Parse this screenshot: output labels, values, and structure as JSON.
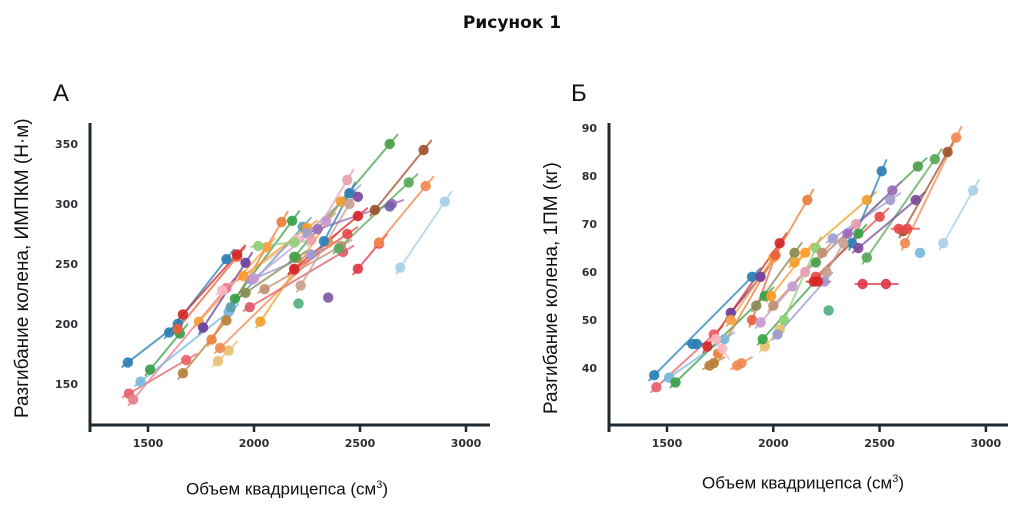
{
  "figure": {
    "title": "Рисунок 1"
  },
  "chart_data": [
    {
      "panel": "А",
      "type": "scatter",
      "subtype": "paired-lines",
      "title": "",
      "xlabel": "Объем квадрицепса (см",
      "xlabel_sup": "3",
      "xlabel_suffix": ")",
      "ylabel": "Разгибание колена, ИМПКМ (Н·м)",
      "xlim": [
        1170,
        3100
      ],
      "ylim": [
        125,
        365
      ],
      "xticks": [
        1500,
        2000,
        2500,
        3000
      ],
      "yticks": [
        150,
        200,
        250,
        300,
        350
      ],
      "grid": false,
      "legend": "none",
      "pairs": [
        {
          "color": "#2a7fb5",
          "x": [
            1405,
            1640
          ],
          "y": [
            168,
            200
          ]
        },
        {
          "color": "#e8606a",
          "x": [
            1410,
            1680
          ],
          "y": [
            142,
            170
          ]
        },
        {
          "color": "#e88090",
          "x": [
            1430,
            1870
          ],
          "y": [
            137,
            230
          ]
        },
        {
          "color": "#7ab8dc",
          "x": [
            1465,
            1880
          ],
          "y": [
            152,
            210
          ]
        },
        {
          "color": "#3aa04a",
          "x": [
            1510,
            1650
          ],
          "y": [
            162,
            192
          ]
        },
        {
          "color": "#2a7fb5",
          "x": [
            1600,
            1870
          ],
          "y": [
            193,
            254
          ]
        },
        {
          "color": "#e8603a",
          "x": [
            1640,
            1920
          ],
          "y": [
            196,
            256
          ]
        },
        {
          "color": "#d62728",
          "x": [
            1665,
            1920
          ],
          "y": [
            208,
            258
          ]
        },
        {
          "color": "#b8803a",
          "x": [
            1665,
            1870
          ],
          "y": [
            159,
            203
          ]
        },
        {
          "color": "#f4a040",
          "x": [
            1740,
            2060
          ],
          "y": [
            202,
            264
          ]
        },
        {
          "color": "#6a3d9a",
          "x": [
            1760,
            1960
          ],
          "y": [
            197,
            251
          ]
        },
        {
          "color": "#e8803a",
          "x": [
            1800,
            2130
          ],
          "y": [
            187,
            285
          ]
        },
        {
          "color": "#e8c070",
          "x": [
            1830,
            1880
          ],
          "y": [
            169,
            178
          ]
        },
        {
          "color": "#f08a50",
          "x": [
            1840,
            2350
          ],
          "y": [
            180,
            268
          ]
        },
        {
          "color": "#f7b8c0",
          "x": [
            1850,
            2200
          ],
          "y": [
            228,
            270
          ]
        },
        {
          "color": "#3aa04a",
          "x": [
            1910,
            2180
          ],
          "y": [
            221,
            286
          ]
        },
        {
          "color": "#5aa0b0",
          "x": [
            1890,
            2230
          ],
          "y": [
            214,
            281
          ]
        },
        {
          "color": "#ff9a28",
          "x": [
            1950,
            2250
          ],
          "y": [
            240,
            280
          ]
        },
        {
          "color": "#9a9ad0",
          "x": [
            1990,
            2270
          ],
          "y": [
            237,
            258
          ]
        },
        {
          "color": "#c59ad0",
          "x": [
            2000,
            2340
          ],
          "y": [
            238,
            286
          ]
        },
        {
          "color": "#8a8a50",
          "x": [
            1960,
            2200
          ],
          "y": [
            226,
            255
          ]
        },
        {
          "color": "#e05a6a",
          "x": [
            1980,
            2420
          ],
          "y": [
            214,
            260
          ]
        },
        {
          "color": "#8fcf7a",
          "x": [
            2020,
            2190
          ],
          "y": [
            265,
            268
          ]
        },
        {
          "color": "#c09070",
          "x": [
            2050,
            2410
          ],
          "y": [
            229,
            265
          ]
        },
        {
          "color": "#f0a030",
          "x": [
            2030,
            2410
          ],
          "y": [
            202,
            302
          ]
        },
        {
          "color": "#e84a4a",
          "x": [
            2190,
            2440
          ],
          "y": [
            245,
            275
          ]
        },
        {
          "color": "#d62728",
          "x": [
            2190,
            2490
          ],
          "y": [
            246,
            290
          ]
        },
        {
          "color": "#4aa04a",
          "x": [
            2190,
            2640
          ],
          "y": [
            256,
            350
          ]
        },
        {
          "color": "#c8a090",
          "x": [
            2220,
            2450
          ],
          "y": [
            232,
            300
          ]
        },
        {
          "color": "#9a6ab8",
          "x": [
            2300,
            2650
          ],
          "y": [
            279,
            300
          ]
        },
        {
          "color": "#a0a0d0",
          "x": [
            2250,
            2460
          ],
          "y": [
            276,
            309
          ]
        },
        {
          "color": "#e8a0b0",
          "x": [
            2270,
            2440
          ],
          "y": [
            270,
            320
          ]
        },
        {
          "color": "#50b080",
          "x": [
            2210,
            2210
          ],
          "y": [
            217,
            217
          ]
        },
        {
          "color": "#7a5aa8",
          "x": [
            2350,
            2350
          ],
          "y": [
            222,
            222
          ]
        },
        {
          "color": "#5aa85a",
          "x": [
            2400,
            2730
          ],
          "y": [
            263,
            318
          ]
        },
        {
          "color": "#2a7fb5",
          "x": [
            2330,
            2450
          ],
          "y": [
            269,
            309
          ]
        },
        {
          "color": "#7a4a9a",
          "x": [
            2490,
            2490
          ],
          "y": [
            306,
            306
          ]
        },
        {
          "color": "#e03a4a",
          "x": [
            2490,
            2590
          ],
          "y": [
            246,
            267
          ]
        },
        {
          "color": "#a0522d",
          "x": [
            2570,
            2800
          ],
          "y": [
            295,
            345
          ]
        },
        {
          "color": "#f08a50",
          "x": [
            2590,
            2810
          ],
          "y": [
            268,
            315
          ]
        },
        {
          "color": "#7a60b0",
          "x": [
            2640,
            2640
          ],
          "y": [
            298,
            298
          ]
        },
        {
          "color": "#a8d0e8",
          "x": [
            2690,
            2900
          ],
          "y": [
            247,
            302
          ]
        }
      ]
    },
    {
      "panel": "Б",
      "type": "scatter",
      "subtype": "paired-lines",
      "title": "",
      "xlabel": "Объем квадрицепса (см",
      "xlabel_sup": "3",
      "xlabel_suffix": ")",
      "ylabel": "Разгибание колена, 1ПМ (кг)",
      "xlim": [
        1170,
        3100
      ],
      "ylim": [
        31,
        91
      ],
      "xticks": [
        1500,
        2000,
        2500,
        3000
      ],
      "yticks": [
        40,
        50,
        60,
        70,
        80,
        90
      ],
      "grid": false,
      "legend": "none",
      "pairs": [
        {
          "color": "#2a7fb5",
          "x": [
            1440,
            1900
          ],
          "y": [
            38.5,
            59
          ]
        },
        {
          "color": "#e8606a",
          "x": [
            1450,
            1720
          ],
          "y": [
            36,
            47
          ]
        },
        {
          "color": "#7ab8dc",
          "x": [
            1510,
            1770
          ],
          "y": [
            38,
            46
          ]
        },
        {
          "color": "#3aa04a",
          "x": [
            1540,
            1960
          ],
          "y": [
            37,
            55
          ]
        },
        {
          "color": "#2a7fb5",
          "x": [
            1620,
            1640
          ],
          "y": [
            45,
            45
          ]
        },
        {
          "color": "#6a3d9a",
          "x": [
            1800,
            1940
          ],
          "y": [
            51.5,
            59
          ]
        },
        {
          "color": "#d62728",
          "x": [
            1690,
            2030
          ],
          "y": [
            44.5,
            66
          ]
        },
        {
          "color": "#e8803a",
          "x": [
            1740,
            2160
          ],
          "y": [
            43,
            75
          ]
        },
        {
          "color": "#f7b8c0",
          "x": [
            1730,
            1760
          ],
          "y": [
            46,
            44
          ]
        },
        {
          "color": "#b8803a",
          "x": [
            1700,
            1720
          ],
          "y": [
            40.5,
            41
          ]
        },
        {
          "color": "#f08a50",
          "x": [
            1830,
            1850
          ],
          "y": [
            40.5,
            41
          ]
        },
        {
          "color": "#e8c070",
          "x": [
            1960,
            2030
          ],
          "y": [
            44.5,
            48
          ]
        },
        {
          "color": "#f4a040",
          "x": [
            1800,
            2000
          ],
          "y": [
            50,
            63
          ]
        },
        {
          "color": "#e8603a",
          "x": [
            1900,
            2010
          ],
          "y": [
            50,
            63.5
          ]
        },
        {
          "color": "#8a8a50",
          "x": [
            1920,
            2100
          ],
          "y": [
            53,
            64
          ]
        },
        {
          "color": "#c59ad0",
          "x": [
            1940,
            2090
          ],
          "y": [
            49.5,
            57
          ]
        },
        {
          "color": "#ff9a28",
          "x": [
            1990,
            2150
          ],
          "y": [
            55,
            64
          ]
        },
        {
          "color": "#3aa04a",
          "x": [
            1950,
            2400
          ],
          "y": [
            46,
            68
          ]
        },
        {
          "color": "#8fcf7a",
          "x": [
            2050,
            2200
          ],
          "y": [
            50,
            65
          ]
        },
        {
          "color": "#c09070",
          "x": [
            2000,
            2230
          ],
          "y": [
            53,
            64
          ]
        },
        {
          "color": "#9a9ad0",
          "x": [
            2020,
            2240
          ],
          "y": [
            47,
            58
          ]
        },
        {
          "color": "#e84a4a",
          "x": [
            2200,
            2500
          ],
          "y": [
            59,
            71.5
          ]
        },
        {
          "color": "#d62728",
          "x": [
            2190,
            2210
          ],
          "y": [
            58,
            58
          ]
        },
        {
          "color": "#4aa04a",
          "x": [
            2200,
            2680
          ],
          "y": [
            62,
            82
          ]
        },
        {
          "color": "#f0a030",
          "x": [
            2100,
            2440
          ],
          "y": [
            62,
            75
          ]
        },
        {
          "color": "#e8a0b0",
          "x": [
            2150,
            2390
          ],
          "y": [
            60,
            70
          ]
        },
        {
          "color": "#a0a0d0",
          "x": [
            2280,
            2550
          ],
          "y": [
            67,
            75
          ]
        },
        {
          "color": "#9a6ab8",
          "x": [
            2350,
            2560
          ],
          "y": [
            68,
            77
          ]
        },
        {
          "color": "#2a7fb5",
          "x": [
            2370,
            2510
          ],
          "y": [
            66,
            81
          ]
        },
        {
          "color": "#c8a090",
          "x": [
            2250,
            2330
          ],
          "y": [
            60,
            66
          ]
        },
        {
          "color": "#50b080",
          "x": [
            2260,
            2260
          ],
          "y": [
            52,
            52
          ]
        },
        {
          "color": "#e03a4a",
          "x": [
            2420,
            2530
          ],
          "y": [
            57.5,
            57.5
          ]
        },
        {
          "color": "#5aa85a",
          "x": [
            2440,
            2760
          ],
          "y": [
            63,
            83.5
          ]
        },
        {
          "color": "#7a4a9a",
          "x": [
            2400,
            2670
          ],
          "y": [
            65,
            75
          ]
        },
        {
          "color": "#a0522d",
          "x": [
            2610,
            2820
          ],
          "y": [
            68.5,
            85
          ]
        },
        {
          "color": "#f08a50",
          "x": [
            2620,
            2860
          ],
          "y": [
            66,
            88
          ]
        },
        {
          "color": "#e84a4a",
          "x": [
            2590,
            2630
          ],
          "y": [
            69,
            69
          ]
        },
        {
          "color": "#7ab8dc",
          "x": [
            2690,
            2690
          ],
          "y": [
            64,
            64
          ]
        },
        {
          "color": "#a8d0e8",
          "x": [
            2800,
            2940
          ],
          "y": [
            66,
            77
          ]
        }
      ]
    }
  ]
}
